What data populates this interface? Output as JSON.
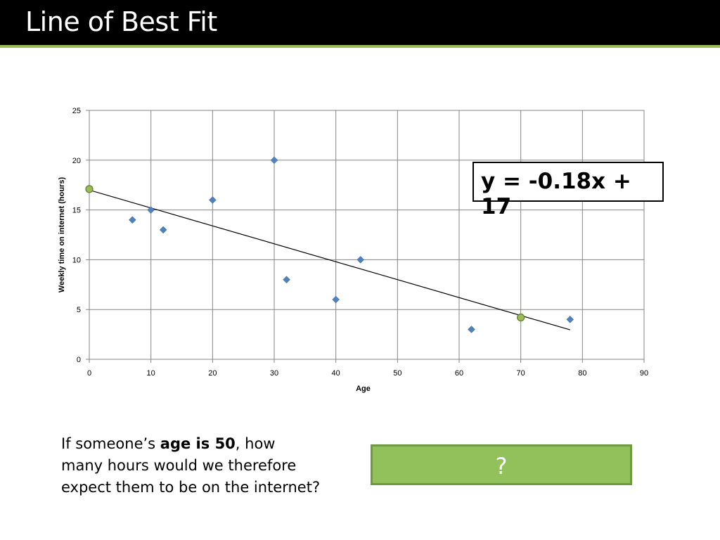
{
  "slide": {
    "title": "Line of Best Fit",
    "equation": "y = -0.18x + 17",
    "question_before": "If someone’s ",
    "question_bold": "age is 50",
    "question_after": ", how many hours would we therefore expect them to be on the internet?",
    "answer_button": "?"
  },
  "colors": {
    "title_bg": "#000000",
    "title_accent": "#9bbb59",
    "point_color": "#4f81bd",
    "highlight_point_color": "#9bbb59",
    "button_color": "#92c05a"
  },
  "chart_data": {
    "type": "scatter",
    "xlabel": "Age",
    "ylabel": "Weekly time on internet (hours)",
    "xlim": [
      0,
      90
    ],
    "ylim": [
      0,
      25
    ],
    "x_ticks": [
      0,
      10,
      20,
      30,
      40,
      50,
      60,
      70,
      80,
      90
    ],
    "y_ticks": [
      0,
      5,
      10,
      15,
      20,
      25
    ],
    "grid": true,
    "legend": "none",
    "series": [
      {
        "points": [
          {
            "x": 7,
            "y": 14
          },
          {
            "x": 10,
            "y": 15
          },
          {
            "x": 12,
            "y": 13
          },
          {
            "x": 20,
            "y": 16
          },
          {
            "x": 30,
            "y": 20
          },
          {
            "x": 32,
            "y": 8
          },
          {
            "x": 40,
            "y": 6
          },
          {
            "x": 44,
            "y": 10
          },
          {
            "x": 62,
            "y": 3
          },
          {
            "x": 78,
            "y": 4
          }
        ]
      }
    ],
    "best_fit_line": {
      "slope": -0.18,
      "intercept": 17,
      "x_start": 0,
      "x_end": 78
    },
    "highlighted_points": [
      {
        "x": 0,
        "y": 17.1
      },
      {
        "x": 70,
        "y": 4.2
      }
    ]
  }
}
